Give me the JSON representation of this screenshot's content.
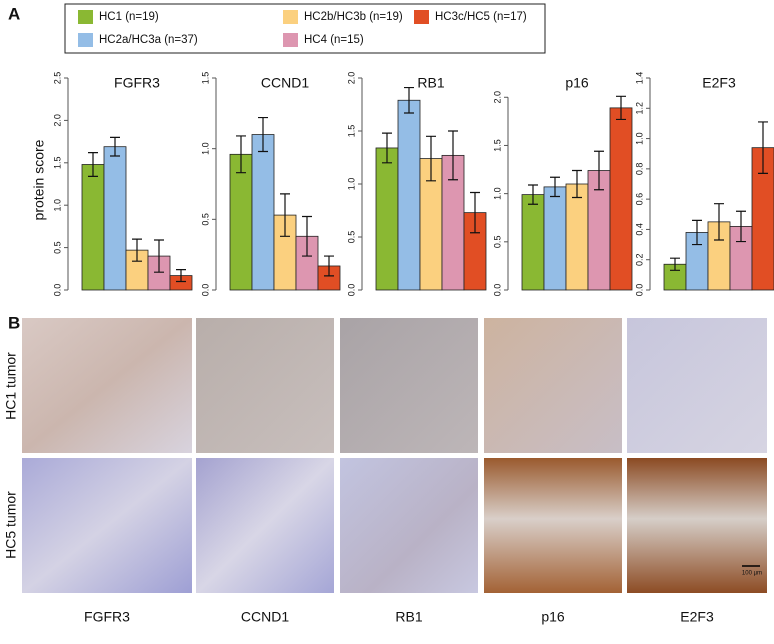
{
  "panel_a": {
    "label": "A",
    "y_label": "protein score",
    "legend": [
      {
        "name": "HC1 (n=19)",
        "color": "#8ab833"
      },
      {
        "name": "HC2a/HC3a (n=37)",
        "color": "#94bde6"
      },
      {
        "name": "HC2b/HC3b (n=19)",
        "color": "#fbd07f"
      },
      {
        "name": "HC4 (n=15)",
        "color": "#dd96b0"
      },
      {
        "name": "HC3c/HC5 (n=17)",
        "color": "#e14e24"
      }
    ]
  },
  "chart_data": [
    {
      "type": "bar",
      "title": "FGFR3",
      "values": [
        1.48,
        1.69,
        0.47,
        0.4,
        0.17
      ],
      "errors": [
        0.14,
        0.11,
        0.13,
        0.19,
        0.07
      ],
      "ylim": [
        0,
        2.5
      ],
      "yticks": [
        {
          "value": 0,
          "label": "0.0"
        },
        0.5,
        {
          "value": 1,
          "label": "1.0"
        },
        1.5,
        {
          "value": 2,
          "label": "2.0"
        },
        2.5
      ]
    },
    {
      "type": "bar",
      "title": "CCND1",
      "values": [
        0.96,
        1.1,
        0.53,
        0.38,
        0.17
      ],
      "errors": [
        0.13,
        0.12,
        0.15,
        0.14,
        0.07
      ],
      "ylim": [
        0,
        1.5
      ],
      "yticks": [
        {
          "value": 0,
          "label": "0.0"
        },
        0.5,
        {
          "value": 1,
          "label": "1.0"
        },
        1.5
      ]
    },
    {
      "type": "bar",
      "title": "RB1",
      "values": [
        1.34,
        1.79,
        1.24,
        1.27,
        0.73
      ],
      "errors": [
        0.14,
        0.12,
        0.21,
        0.23,
        0.19
      ],
      "ylim": [
        0,
        2.0
      ],
      "yticks": [
        {
          "value": 0,
          "label": "0.0"
        },
        0.5,
        {
          "value": 1,
          "label": "1.0"
        },
        1.5,
        {
          "value": 2,
          "label": "2.0"
        }
      ]
    },
    {
      "type": "bar",
      "title": "p16",
      "values": [
        0.99,
        1.07,
        1.1,
        1.24,
        1.89
      ],
      "errors": [
        0.1,
        0.1,
        0.14,
        0.2,
        0.12
      ],
      "ylim": [
        0,
        2.2
      ],
      "yticks": [
        {
          "value": 0,
          "label": "0.0"
        },
        0.5,
        {
          "value": 1,
          "label": "1.0"
        },
        1.5,
        {
          "value": 2,
          "label": "2.0"
        }
      ]
    },
    {
      "type": "bar",
      "title": "E2F3",
      "values": [
        0.17,
        0.38,
        0.45,
        0.42,
        0.94
      ],
      "errors": [
        0.04,
        0.08,
        0.12,
        0.1,
        0.17
      ],
      "ylim": [
        0,
        1.4
      ],
      "yticks": [
        {
          "value": 0,
          "label": "0.0"
        },
        0.2,
        0.4,
        0.6,
        0.8,
        {
          "value": 1,
          "label": "1.0"
        },
        1.2,
        1.4
      ]
    }
  ],
  "panel_b": {
    "label": "B",
    "rows": [
      "HC1 tumor",
      "HC5 tumor"
    ],
    "columns": [
      "FGFR3",
      "CCND1",
      "RB1",
      "p16",
      "E2F3"
    ],
    "scale_bar": "100 µm"
  }
}
